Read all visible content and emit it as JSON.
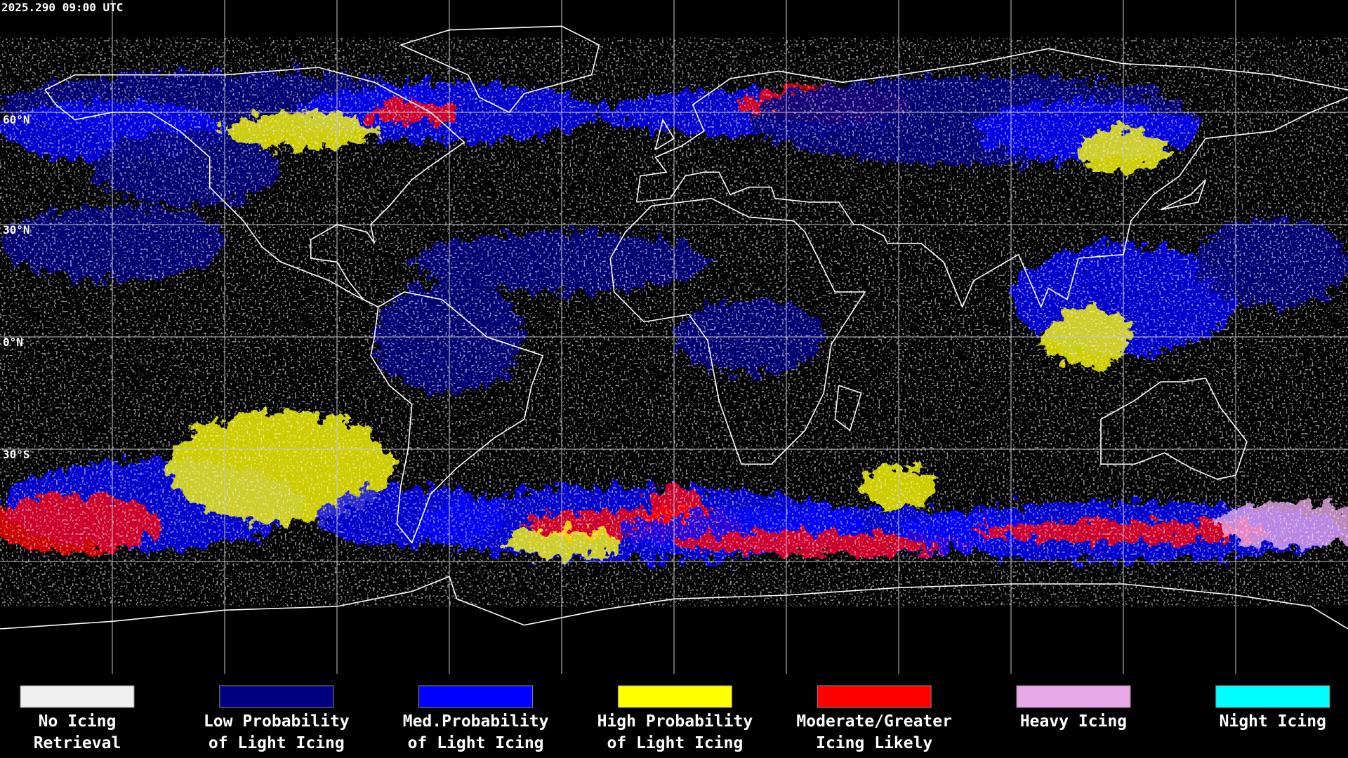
{
  "header": {
    "timestamp": "2025.290 09:00 UTC"
  },
  "map": {
    "latitude_labels": [
      "60°N",
      "30°N",
      "0°N",
      "30°S"
    ]
  },
  "legend": [
    {
      "label": [
        "No Icing",
        "Retrieval"
      ],
      "color": "#f0f0f0"
    },
    {
      "label": [
        "Low Probability",
        "of Light Icing"
      ],
      "color": "#000080"
    },
    {
      "label": [
        "Med.Probability",
        "of Light Icing"
      ],
      "color": "#0000ff"
    },
    {
      "label": [
        "High Probability",
        "of Light Icing"
      ],
      "color": "#ffff00"
    },
    {
      "label": [
        "Moderate/Greater",
        "Icing Likely"
      ],
      "color": "#ff0000"
    },
    {
      "label": [
        "Heavy Icing"
      ],
      "color": "#e8a8e8"
    },
    {
      "label": [
        "Night Icing"
      ],
      "color": "#00ffff"
    }
  ]
}
